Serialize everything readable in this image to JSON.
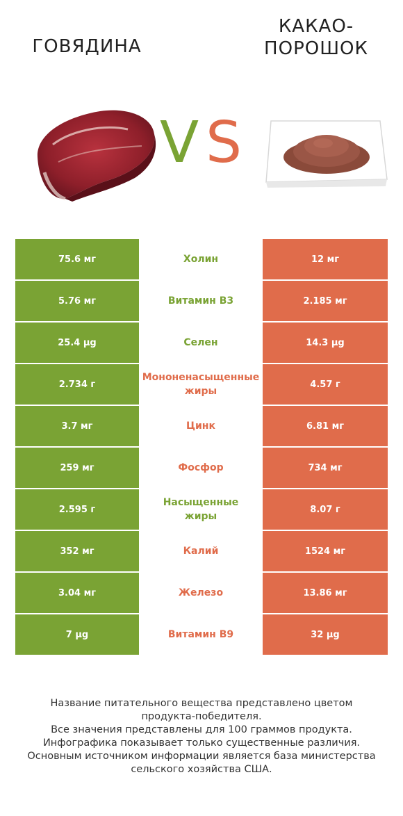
{
  "header": {
    "left_title": "ГОВЯДИНА",
    "right_title_line1": "КАКАО-",
    "right_title_line2": "ПОРОШОК",
    "vs_v": "V",
    "vs_s": "S"
  },
  "colors": {
    "green": "#7aa334",
    "orange": "#e06c4b"
  },
  "rows": [
    {
      "left": "75.6 мг",
      "nutrient": "Холин",
      "right": "12 мг",
      "winner": "left"
    },
    {
      "left": "5.76 мг",
      "nutrient": "Витамин B3",
      "right": "2.185 мг",
      "winner": "left"
    },
    {
      "left": "25.4 µg",
      "nutrient": "Селен",
      "right": "14.3 µg",
      "winner": "left"
    },
    {
      "left": "2.734 г",
      "nutrient": "Мононенасыщенные жиры",
      "nutrient_l1": "Мононенасыщенные",
      "nutrient_l2": "жиры",
      "right": "4.57 г",
      "winner": "right"
    },
    {
      "left": "3.7 мг",
      "nutrient": "Цинк",
      "right": "6.81 мг",
      "winner": "right"
    },
    {
      "left": "259 мг",
      "nutrient": "Фосфор",
      "right": "734 мг",
      "winner": "right"
    },
    {
      "left": "2.595 г",
      "nutrient": "Насыщенные жиры",
      "nutrient_l1": "Насыщенные",
      "nutrient_l2": "жиры",
      "right": "8.07 г",
      "winner": "left"
    },
    {
      "left": "352 мг",
      "nutrient": "Калий",
      "right": "1524 мг",
      "winner": "right"
    },
    {
      "left": "3.04 мг",
      "nutrient": "Железо",
      "right": "13.86 мг",
      "winner": "right"
    },
    {
      "left": "7 µg",
      "nutrient": "Витамин B9",
      "right": "32 µg",
      "winner": "right"
    }
  ],
  "footer": {
    "line1": "Название питательного вещества представлено цветом",
    "line2": "продукта-победителя.",
    "line3": "Все значения представлены для 100 граммов продукта.",
    "line4": "Инфографика показывает только существенные различия.",
    "line5": "Основным источником информации является база министерства",
    "line6": "сельского хозяйства США."
  }
}
